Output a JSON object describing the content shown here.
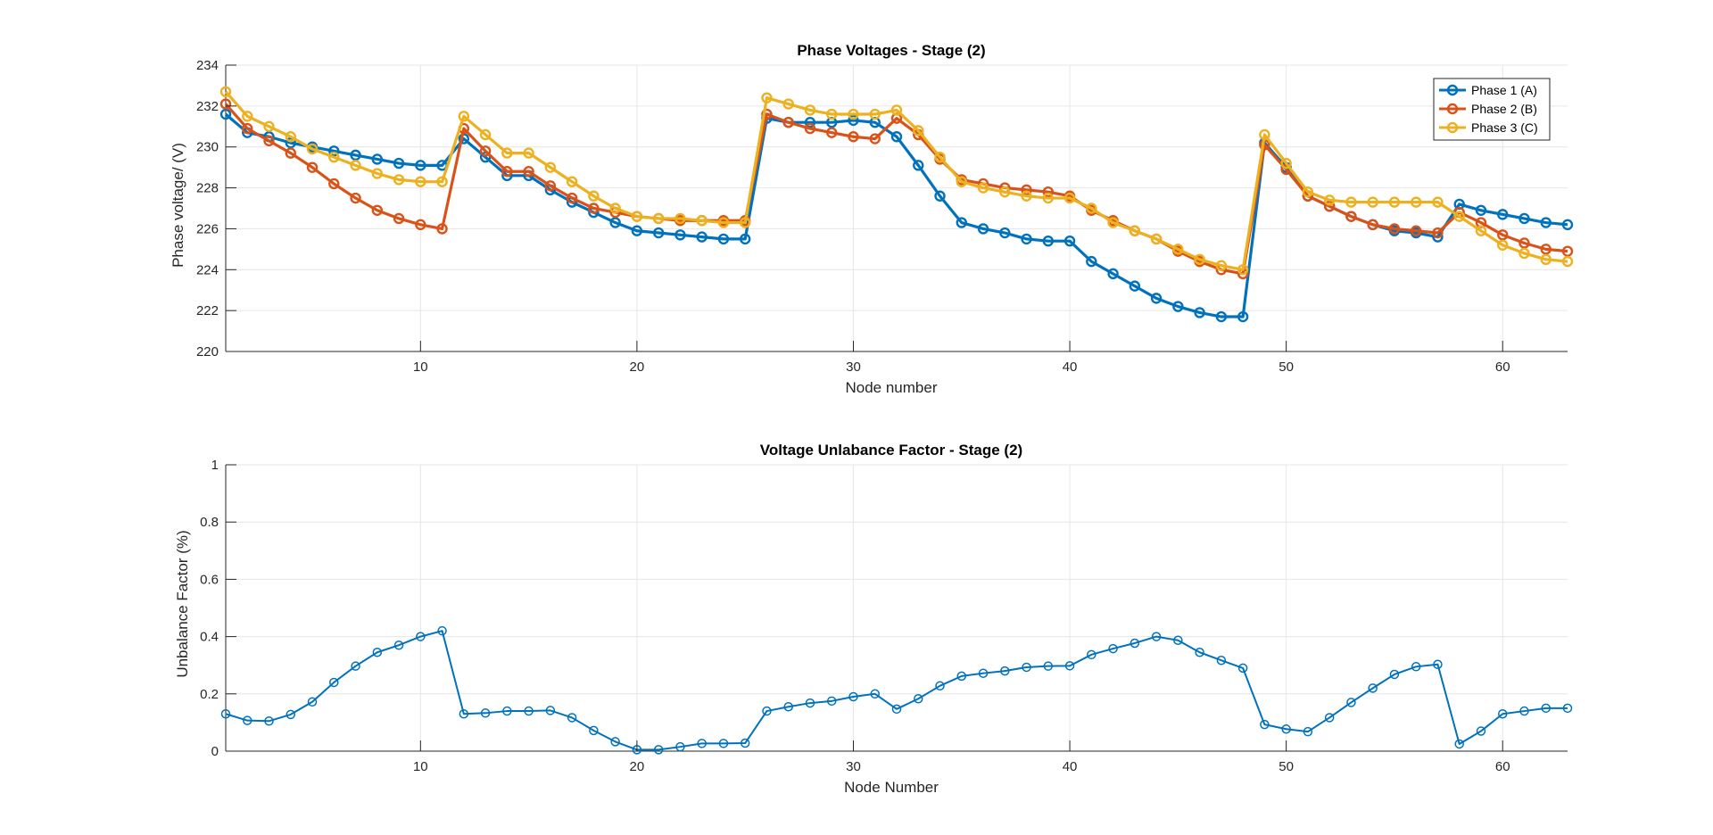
{
  "chart_data": [
    {
      "type": "line",
      "title": "Phase Voltages - Stage (2)",
      "xlabel": "Node number",
      "ylabel": "Phase voltage/ (V)",
      "xlim": [
        1,
        63
      ],
      "ylim": [
        220,
        234
      ],
      "xticks": [
        10,
        20,
        30,
        40,
        50,
        60
      ],
      "yticks": [
        220,
        222,
        224,
        226,
        228,
        230,
        232,
        234
      ],
      "grid": true,
      "legend_position": "top-right",
      "x": [
        1,
        2,
        3,
        4,
        5,
        6,
        7,
        8,
        9,
        10,
        11,
        12,
        13,
        14,
        15,
        16,
        17,
        18,
        19,
        20,
        21,
        22,
        23,
        24,
        25,
        26,
        27,
        28,
        29,
        30,
        31,
        32,
        33,
        34,
        35,
        36,
        37,
        38,
        39,
        40,
        41,
        42,
        43,
        44,
        45,
        46,
        47,
        48,
        49,
        50,
        51,
        52,
        53,
        54,
        55,
        56,
        57,
        58,
        59,
        60,
        61,
        62,
        63
      ],
      "series": [
        {
          "name": "Phase 1 (A)",
          "color": "#0072BD",
          "values": [
            231.6,
            230.7,
            230.5,
            230.2,
            230.0,
            229.8,
            229.6,
            229.4,
            229.2,
            229.1,
            229.1,
            230.4,
            229.5,
            228.6,
            228.6,
            227.9,
            227.3,
            226.8,
            226.3,
            225.9,
            225.8,
            225.7,
            225.6,
            225.5,
            225.5,
            231.4,
            231.2,
            231.2,
            231.2,
            231.3,
            231.2,
            230.5,
            229.1,
            227.6,
            226.3,
            226.0,
            225.8,
            225.5,
            225.4,
            225.4,
            224.4,
            223.8,
            223.2,
            222.6,
            222.2,
            221.9,
            221.7,
            221.7,
            230.2,
            229.0,
            227.6,
            227.1,
            226.6,
            226.2,
            225.9,
            225.8,
            225.6,
            227.2,
            226.9,
            226.7,
            226.5,
            226.3,
            226.2
          ]
        },
        {
          "name": "Phase 2 (B)",
          "color": "#D95319",
          "values": [
            232.1,
            230.9,
            230.3,
            229.7,
            229.0,
            228.2,
            227.5,
            226.9,
            226.5,
            226.2,
            226.0,
            230.9,
            229.8,
            228.8,
            228.8,
            228.1,
            227.5,
            227.0,
            226.8,
            226.6,
            226.5,
            226.4,
            226.4,
            226.4,
            226.4,
            231.6,
            231.2,
            230.9,
            230.7,
            230.5,
            230.4,
            231.4,
            230.6,
            229.4,
            228.4,
            228.2,
            228.0,
            227.9,
            227.8,
            227.6,
            226.9,
            226.4,
            225.9,
            225.5,
            224.9,
            224.4,
            224.0,
            223.8,
            230.1,
            228.9,
            227.6,
            227.1,
            226.6,
            226.2,
            226.0,
            225.9,
            225.8,
            226.8,
            226.3,
            225.7,
            225.3,
            225.0,
            224.9
          ]
        },
        {
          "name": "Phase 3 (C)",
          "color": "#EDB120",
          "values": [
            232.7,
            231.5,
            231.0,
            230.5,
            229.9,
            229.5,
            229.1,
            228.7,
            228.4,
            228.3,
            228.3,
            231.5,
            230.6,
            229.7,
            229.7,
            229.0,
            228.3,
            227.6,
            227.0,
            226.6,
            226.5,
            226.5,
            226.4,
            226.3,
            226.3,
            232.4,
            232.1,
            231.8,
            231.6,
            231.6,
            231.6,
            231.8,
            230.8,
            229.5,
            228.3,
            228.0,
            227.8,
            227.6,
            227.5,
            227.5,
            227.0,
            226.3,
            225.9,
            225.5,
            225.0,
            224.5,
            224.2,
            224.0,
            230.6,
            229.2,
            227.8,
            227.4,
            227.3,
            227.3,
            227.3,
            227.3,
            227.3,
            226.6,
            225.9,
            225.2,
            224.8,
            224.5,
            224.4
          ]
        }
      ]
    },
    {
      "type": "line",
      "title": "Voltage Unlabance Factor - Stage (2)",
      "xlabel": "Node Number",
      "ylabel": "Unbalance Factor (%)",
      "xlim": [
        1,
        63
      ],
      "ylim": [
        0,
        1
      ],
      "xticks": [
        10,
        20,
        30,
        40,
        50,
        60
      ],
      "yticks": [
        0,
        0.2,
        0.4,
        0.6,
        0.8,
        1
      ],
      "grid": true,
      "x": [
        1,
        2,
        3,
        4,
        5,
        6,
        7,
        8,
        9,
        10,
        11,
        12,
        13,
        14,
        15,
        16,
        17,
        18,
        19,
        20,
        21,
        22,
        23,
        24,
        25,
        26,
        27,
        28,
        29,
        30,
        31,
        32,
        33,
        34,
        35,
        36,
        37,
        38,
        39,
        40,
        41,
        42,
        43,
        44,
        45,
        46,
        47,
        48,
        49,
        50,
        51,
        52,
        53,
        54,
        55,
        56,
        57,
        58,
        59,
        60,
        61,
        62,
        63
      ],
      "series": [
        {
          "color": "#0072BD",
          "values": [
            0.13,
            0.107,
            0.105,
            0.128,
            0.172,
            0.24,
            0.297,
            0.345,
            0.37,
            0.4,
            0.42,
            0.13,
            0.133,
            0.14,
            0.14,
            0.142,
            0.117,
            0.072,
            0.033,
            0.005,
            0.005,
            0.015,
            0.027,
            0.027,
            0.028,
            0.14,
            0.155,
            0.168,
            0.175,
            0.19,
            0.2,
            0.147,
            0.183,
            0.228,
            0.262,
            0.272,
            0.28,
            0.293,
            0.297,
            0.298,
            0.337,
            0.358,
            0.377,
            0.4,
            0.387,
            0.345,
            0.317,
            0.29,
            0.093,
            0.077,
            0.068,
            0.117,
            0.17,
            0.22,
            0.268,
            0.295,
            0.303,
            0.025,
            0.07,
            0.13,
            0.14,
            0.15,
            0.15
          ]
        }
      ]
    }
  ]
}
